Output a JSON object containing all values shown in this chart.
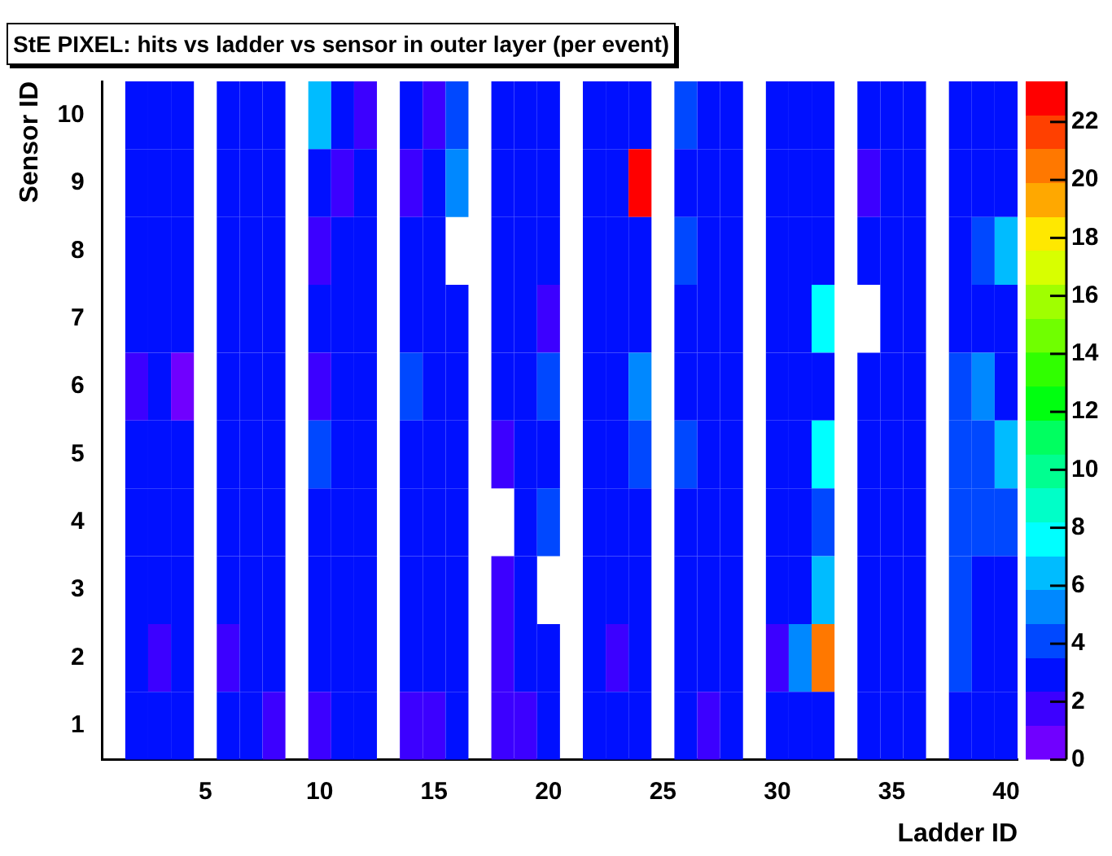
{
  "chart_data": {
    "type": "heatmap",
    "title": "StE PIXEL: hits vs ladder vs sensor in outer layer (per event)",
    "xlabel": "Ladder ID",
    "ylabel": "Sensor ID",
    "categories": [
      null,
      null,
      null,
      null,
      "5",
      null,
      null,
      null,
      null,
      "10",
      null,
      null,
      null,
      null,
      "15",
      null,
      null,
      null,
      null,
      "20",
      null,
      null,
      null,
      null,
      "25",
      null,
      null,
      null,
      null,
      "30",
      null,
      null,
      null,
      null,
      "35",
      null,
      null,
      null,
      null,
      "40"
    ],
    "y_categories": [
      "10",
      "9",
      "8",
      "7",
      "6",
      "5",
      "4",
      "3",
      "2",
      "1"
    ],
    "cells": [
      [
        null,
        3,
        3,
        3,
        null,
        3,
        3,
        3,
        null,
        6.5,
        3,
        2,
        null,
        3,
        2,
        4,
        null,
        3,
        3,
        3,
        null,
        3,
        3,
        3,
        null,
        4,
        3,
        3,
        null,
        3,
        3,
        3,
        null,
        3,
        3,
        3,
        null,
        3,
        3,
        3
      ],
      [
        null,
        3,
        3,
        3,
        null,
        3,
        3,
        3,
        null,
        3,
        2,
        3,
        null,
        2,
        3,
        5.5,
        null,
        3,
        3,
        3,
        null,
        3,
        3,
        23,
        null,
        3,
        3,
        3,
        null,
        3,
        3,
        3,
        null,
        2,
        3,
        3,
        null,
        3,
        3,
        3
      ],
      [
        null,
        3,
        3,
        3,
        null,
        3,
        3,
        3,
        null,
        2,
        3,
        3,
        null,
        3,
        3,
        null,
        null,
        3,
        3,
        3,
        null,
        3,
        3,
        3,
        null,
        4,
        3,
        3,
        null,
        3,
        3,
        3,
        null,
        3,
        3,
        3,
        null,
        3,
        4,
        6.5
      ],
      [
        null,
        3,
        3,
        3,
        null,
        3,
        3,
        3,
        null,
        3,
        3,
        3,
        null,
        3,
        3,
        3,
        null,
        3,
        3,
        2,
        null,
        3,
        3,
        3,
        null,
        3,
        3,
        3,
        null,
        3,
        3,
        8,
        null,
        null,
        3,
        3,
        null,
        3,
        3,
        3
      ],
      [
        null,
        2,
        3,
        1,
        null,
        3,
        3,
        3,
        null,
        2,
        3,
        3,
        null,
        4,
        3,
        3,
        null,
        3,
        3,
        4,
        null,
        3,
        3,
        5.5,
        null,
        3,
        3,
        3,
        null,
        3,
        3,
        3,
        null,
        3,
        3,
        3,
        null,
        4,
        5.5,
        3
      ],
      [
        null,
        3,
        3,
        3,
        null,
        3,
        3,
        3,
        null,
        4,
        3,
        3,
        null,
        3,
        3,
        3,
        null,
        2,
        3,
        3,
        null,
        3,
        3,
        4,
        null,
        4,
        3,
        3,
        null,
        3,
        3,
        8,
        null,
        3,
        3,
        3,
        null,
        4,
        4,
        6.5
      ],
      [
        null,
        3,
        3,
        3,
        null,
        3,
        3,
        3,
        null,
        3,
        3,
        3,
        null,
        3,
        3,
        3,
        null,
        null,
        3,
        4,
        null,
        3,
        3,
        3,
        null,
        3,
        3,
        3,
        null,
        3,
        3,
        4,
        null,
        3,
        3,
        3,
        null,
        4,
        4,
        4
      ],
      [
        null,
        3,
        3,
        3,
        null,
        3,
        3,
        3,
        null,
        3,
        3,
        3,
        null,
        3,
        3,
        3,
        null,
        2,
        3,
        null,
        null,
        3,
        3,
        3,
        null,
        3,
        3,
        3,
        null,
        3,
        3,
        6.5,
        null,
        3,
        3,
        3,
        null,
        4,
        3,
        3
      ],
      [
        null,
        3,
        2,
        3,
        null,
        2,
        3,
        3,
        null,
        3,
        3,
        3,
        null,
        3,
        3,
        3,
        null,
        2,
        3,
        3,
        null,
        3,
        2,
        3,
        null,
        3,
        3,
        3,
        null,
        2,
        5.5,
        20.5,
        null,
        3,
        3,
        3,
        null,
        4,
        3,
        3
      ],
      [
        null,
        3,
        3,
        3,
        null,
        3,
        3,
        2,
        null,
        2,
        3,
        3,
        null,
        2,
        2,
        3,
        null,
        2,
        2,
        3,
        null,
        3,
        3,
        3,
        null,
        3,
        2,
        3,
        null,
        3,
        3,
        3,
        null,
        3,
        3,
        3,
        null,
        3,
        3,
        3
      ]
    ],
    "clim": [
      0,
      23.4
    ],
    "cticks": [
      0,
      2,
      4,
      6,
      8,
      10,
      12,
      14,
      16,
      18,
      20,
      22
    ]
  }
}
